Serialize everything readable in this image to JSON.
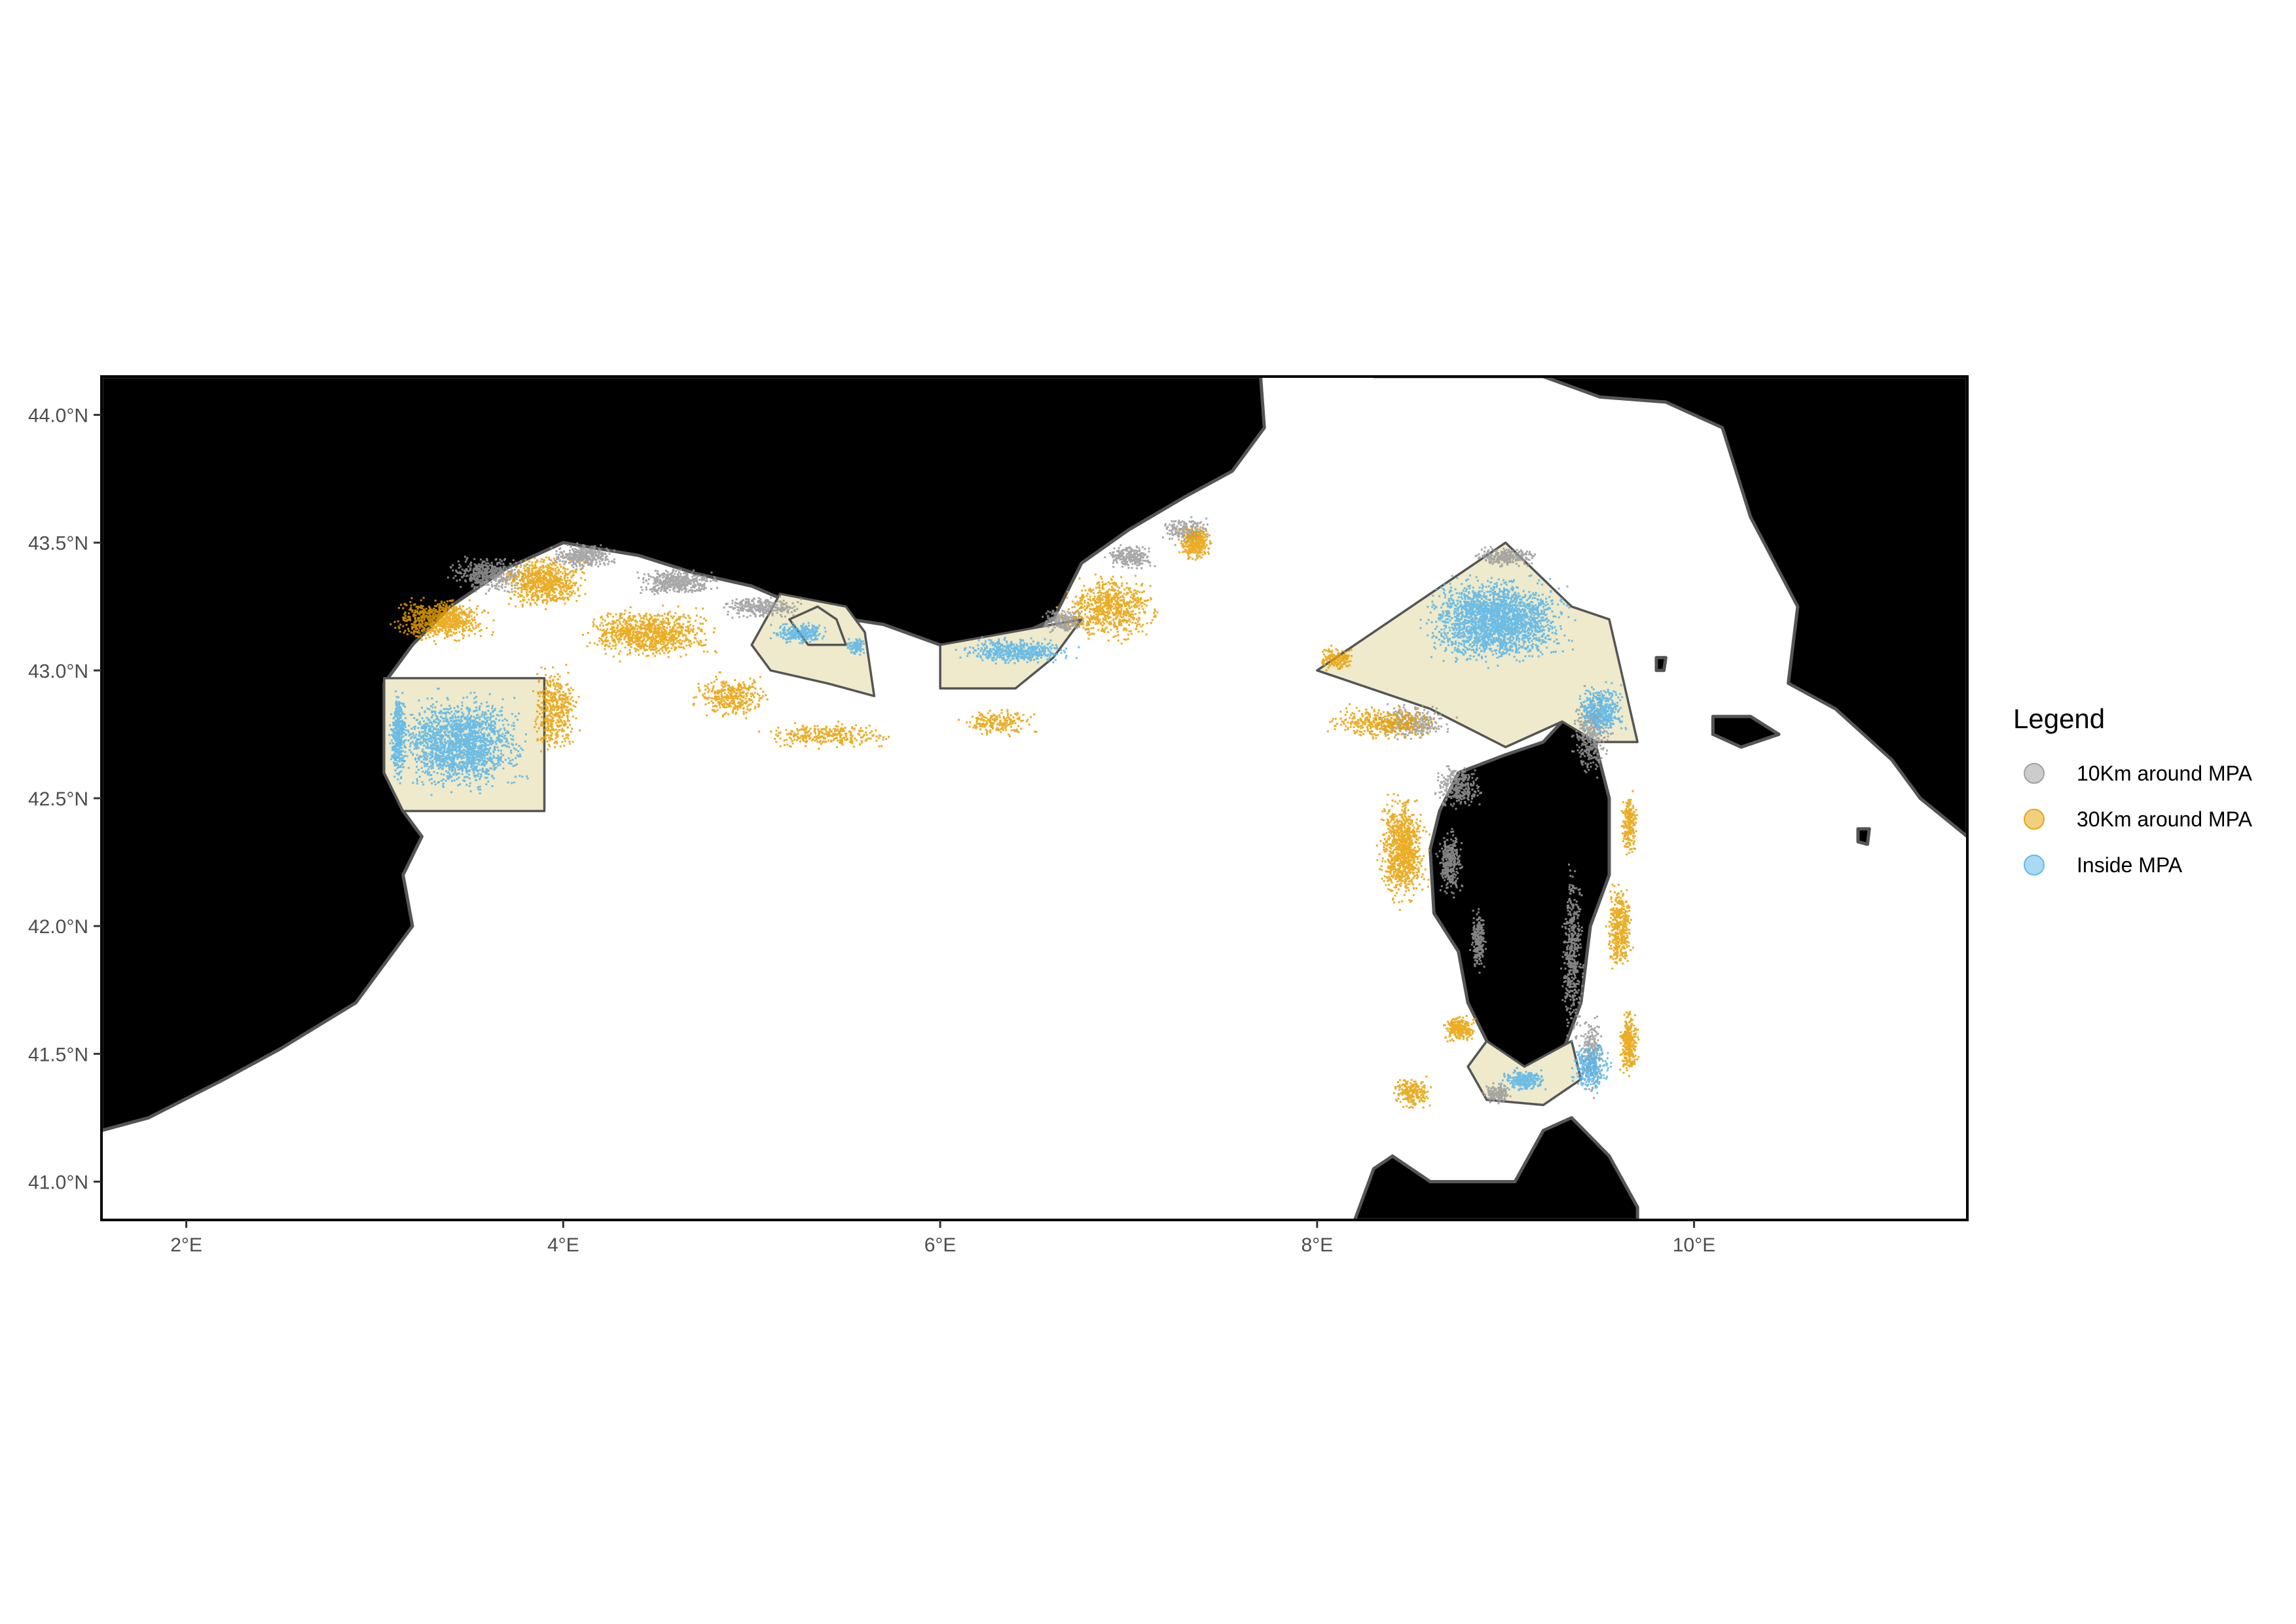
{
  "map": {
    "lon_range": [
      1.55,
      11.45
    ],
    "lat_range": [
      40.85,
      44.15
    ],
    "x_ticks": [
      {
        "value": 2,
        "label": "2°E"
      },
      {
        "value": 4,
        "label": "4°E"
      },
      {
        "value": 6,
        "label": "6°E"
      },
      {
        "value": 8,
        "label": "8°E"
      },
      {
        "value": 10,
        "label": "10°E"
      }
    ],
    "y_ticks": [
      {
        "value": 44.0,
        "label": "44.0°N"
      },
      {
        "value": 43.5,
        "label": "43.5°N"
      },
      {
        "value": 43.0,
        "label": "43.0°N"
      },
      {
        "value": 42.5,
        "label": "42.5°N"
      },
      {
        "value": 42.0,
        "label": "42.0°N"
      },
      {
        "value": 41.5,
        "label": "41.5°N"
      },
      {
        "value": 41.0,
        "label": "41.0°N"
      }
    ],
    "colors": {
      "land": "#000000",
      "coastline": "#555555",
      "sea": "#ffffff",
      "mpa_fill": "#eeeacb",
      "mpa_outline": "#555555",
      "ten_km": "#999999",
      "thirty_km": "#e69f00",
      "inside": "#56b4e9"
    },
    "land_polygons": [
      {
        "name": "france-mainland",
        "coords": [
          [
            1.55,
            44.15
          ],
          [
            7.7,
            44.15
          ],
          [
            7.72,
            43.95
          ],
          [
            7.55,
            43.78
          ],
          [
            7.3,
            43.68
          ],
          [
            7.0,
            43.55
          ],
          [
            6.75,
            43.42
          ],
          [
            6.6,
            43.2
          ],
          [
            6.3,
            43.1
          ],
          [
            6.0,
            43.1
          ],
          [
            5.7,
            43.18
          ],
          [
            5.35,
            43.22
          ],
          [
            5.0,
            43.33
          ],
          [
            4.7,
            43.38
          ],
          [
            4.4,
            43.45
          ],
          [
            4.0,
            43.5
          ],
          [
            3.7,
            43.4
          ],
          [
            3.4,
            43.25
          ],
          [
            3.2,
            43.1
          ],
          [
            3.05,
            42.95
          ],
          [
            3.05,
            42.6
          ],
          [
            3.15,
            42.45
          ],
          [
            3.25,
            42.35
          ],
          [
            3.15,
            42.2
          ],
          [
            3.2,
            42.0
          ],
          [
            2.9,
            41.7
          ],
          [
            2.5,
            41.52
          ],
          [
            2.2,
            41.4
          ],
          [
            1.8,
            41.25
          ],
          [
            1.55,
            41.2
          ]
        ]
      },
      {
        "name": "italy-mainland",
        "coords": [
          [
            8.3,
            44.15
          ],
          [
            9.2,
            44.15
          ],
          [
            9.5,
            44.07
          ],
          [
            9.85,
            44.05
          ],
          [
            10.15,
            43.95
          ],
          [
            10.3,
            43.6
          ],
          [
            10.55,
            43.25
          ],
          [
            10.5,
            42.95
          ],
          [
            10.75,
            42.85
          ],
          [
            11.05,
            42.65
          ],
          [
            11.2,
            42.5
          ],
          [
            11.45,
            42.35
          ],
          [
            11.45,
            44.15
          ]
        ]
      },
      {
        "name": "corsica",
        "coords": [
          [
            9.35,
            43.0
          ],
          [
            9.45,
            43.02
          ],
          [
            9.46,
            42.9
          ],
          [
            9.48,
            42.7
          ],
          [
            9.55,
            42.5
          ],
          [
            9.55,
            42.2
          ],
          [
            9.45,
            42.0
          ],
          [
            9.4,
            41.7
          ],
          [
            9.3,
            41.5
          ],
          [
            9.25,
            41.37
          ],
          [
            9.1,
            41.4
          ],
          [
            8.9,
            41.55
          ],
          [
            8.8,
            41.7
          ],
          [
            8.75,
            41.9
          ],
          [
            8.62,
            42.05
          ],
          [
            8.6,
            42.3
          ],
          [
            8.65,
            42.45
          ],
          [
            8.75,
            42.6
          ],
          [
            9.0,
            42.67
          ],
          [
            9.2,
            42.72
          ],
          [
            9.3,
            42.8
          ]
        ]
      },
      {
        "name": "sardinia",
        "coords": [
          [
            8.2,
            40.85
          ],
          [
            8.3,
            41.05
          ],
          [
            8.4,
            41.1
          ],
          [
            8.6,
            41.0
          ],
          [
            9.05,
            41.0
          ],
          [
            9.2,
            41.2
          ],
          [
            9.35,
            41.25
          ],
          [
            9.55,
            41.1
          ],
          [
            9.7,
            40.9
          ],
          [
            9.7,
            40.85
          ]
        ]
      },
      {
        "name": "elba",
        "coords": [
          [
            10.1,
            42.82
          ],
          [
            10.3,
            42.82
          ],
          [
            10.45,
            42.75
          ],
          [
            10.25,
            42.7
          ],
          [
            10.1,
            42.75
          ]
        ]
      },
      {
        "name": "capraia",
        "coords": [
          [
            9.8,
            43.05
          ],
          [
            9.85,
            43.05
          ],
          [
            9.84,
            43.0
          ],
          [
            9.8,
            43.0
          ]
        ]
      },
      {
        "name": "giglio",
        "coords": [
          [
            10.87,
            42.38
          ],
          [
            10.93,
            42.38
          ],
          [
            10.92,
            42.32
          ],
          [
            10.87,
            42.33
          ]
        ]
      }
    ],
    "mpa_polygons": [
      {
        "name": "gulf-of-lion-mpa",
        "coords": [
          [
            3.05,
            42.97
          ],
          [
            3.9,
            42.97
          ],
          [
            3.9,
            42.45
          ],
          [
            3.15,
            42.45
          ],
          [
            3.05,
            42.6
          ]
        ]
      },
      {
        "name": "cote-bleue-mpa",
        "coords": [
          [
            5.0,
            43.1
          ],
          [
            5.15,
            43.3
          ],
          [
            5.5,
            43.25
          ],
          [
            5.6,
            43.15
          ],
          [
            5.65,
            42.9
          ],
          [
            5.4,
            42.95
          ],
          [
            5.1,
            43.0
          ]
        ]
      },
      {
        "name": "calanques-inner",
        "coords": [
          [
            5.2,
            43.2
          ],
          [
            5.35,
            43.25
          ],
          [
            5.45,
            43.2
          ],
          [
            5.5,
            43.1
          ],
          [
            5.3,
            43.1
          ]
        ]
      },
      {
        "name": "port-cros-mpa",
        "coords": [
          [
            6.0,
            43.1
          ],
          [
            6.75,
            43.2
          ],
          [
            6.6,
            43.05
          ],
          [
            6.4,
            42.93
          ],
          [
            6.0,
            42.93
          ]
        ]
      },
      {
        "name": "pelagos-sanctuary",
        "coords": [
          [
            8.0,
            43.0
          ],
          [
            9.0,
            43.5
          ],
          [
            9.35,
            43.25
          ],
          [
            9.55,
            43.2
          ],
          [
            9.7,
            42.72
          ],
          [
            9.48,
            42.72
          ],
          [
            9.3,
            42.8
          ],
          [
            9.0,
            42.7
          ],
          [
            8.6,
            42.85
          ]
        ]
      },
      {
        "name": "bonifacio-mpa",
        "coords": [
          [
            8.8,
            41.45
          ],
          [
            8.9,
            41.55
          ],
          [
            9.1,
            41.45
          ],
          [
            9.35,
            41.55
          ],
          [
            9.4,
            41.4
          ],
          [
            9.2,
            41.3
          ],
          [
            8.9,
            41.32
          ]
        ]
      }
    ],
    "point_clusters": [
      {
        "category": "ten_km",
        "clusters": [
          [
            3.6,
            43.38,
            0.25,
            0.08,
            450
          ],
          [
            4.1,
            43.45,
            0.2,
            0.06,
            350
          ],
          [
            4.6,
            43.35,
            0.25,
            0.06,
            450
          ],
          [
            5.05,
            43.25,
            0.25,
            0.05,
            300
          ],
          [
            6.65,
            43.2,
            0.15,
            0.06,
            250
          ],
          [
            7.0,
            43.45,
            0.15,
            0.06,
            250
          ],
          [
            7.3,
            43.55,
            0.15,
            0.06,
            200
          ],
          [
            9.45,
            42.75,
            0.12,
            0.2,
            350
          ],
          [
            8.75,
            42.55,
            0.15,
            0.1,
            300
          ],
          [
            8.7,
            42.25,
            0.08,
            0.15,
            300
          ],
          [
            8.85,
            41.95,
            0.05,
            0.15,
            200
          ],
          [
            9.35,
            41.9,
            0.07,
            0.4,
            450
          ],
          [
            9.45,
            41.5,
            0.07,
            0.18,
            250
          ],
          [
            8.95,
            41.35,
            0.1,
            0.05,
            150
          ],
          [
            9.0,
            43.45,
            0.2,
            0.05,
            250
          ],
          [
            8.5,
            42.8,
            0.25,
            0.08,
            300
          ]
        ]
      },
      {
        "category": "thirty_km",
        "clusters": [
          [
            3.35,
            43.2,
            0.3,
            0.1,
            750
          ],
          [
            3.95,
            42.85,
            0.15,
            0.2,
            450
          ],
          [
            3.9,
            43.35,
            0.25,
            0.12,
            700
          ],
          [
            4.45,
            43.15,
            0.4,
            0.12,
            900
          ],
          [
            4.9,
            42.9,
            0.25,
            0.1,
            350
          ],
          [
            5.4,
            42.75,
            0.4,
            0.06,
            300
          ],
          [
            6.3,
            42.8,
            0.25,
            0.06,
            200
          ],
          [
            6.9,
            43.25,
            0.3,
            0.15,
            700
          ],
          [
            7.35,
            43.5,
            0.1,
            0.08,
            300
          ],
          [
            8.35,
            42.8,
            0.35,
            0.08,
            400
          ],
          [
            8.45,
            42.3,
            0.15,
            0.25,
            900
          ],
          [
            9.65,
            42.4,
            0.05,
            0.15,
            200
          ],
          [
            9.6,
            42.0,
            0.08,
            0.2,
            400
          ],
          [
            9.65,
            41.55,
            0.06,
            0.15,
            300
          ],
          [
            8.75,
            41.6,
            0.1,
            0.06,
            250
          ],
          [
            8.5,
            41.35,
            0.12,
            0.08,
            200
          ],
          [
            8.1,
            43.05,
            0.12,
            0.06,
            150
          ]
        ]
      },
      {
        "category": "inside",
        "clusters": [
          [
            3.45,
            42.72,
            0.4,
            0.22,
            1800
          ],
          [
            3.12,
            42.75,
            0.05,
            0.2,
            400
          ],
          [
            5.25,
            43.15,
            0.18,
            0.05,
            250
          ],
          [
            5.55,
            43.1,
            0.06,
            0.05,
            80
          ],
          [
            6.4,
            43.08,
            0.35,
            0.06,
            500
          ],
          [
            8.95,
            43.2,
            0.45,
            0.2,
            2200
          ],
          [
            9.5,
            42.85,
            0.15,
            0.12,
            400
          ],
          [
            9.45,
            41.45,
            0.12,
            0.12,
            300
          ],
          [
            9.1,
            41.4,
            0.15,
            0.05,
            250
          ]
        ]
      }
    ]
  },
  "legend": {
    "title": "Legend",
    "items": [
      {
        "key": "ten_km",
        "label": "10Km around MPA",
        "color": "#999999"
      },
      {
        "key": "thirty_km",
        "label": "30Km around MPA",
        "color": "#e69f00"
      },
      {
        "key": "inside",
        "label": "Inside MPA",
        "color": "#56b4e9"
      }
    ]
  }
}
